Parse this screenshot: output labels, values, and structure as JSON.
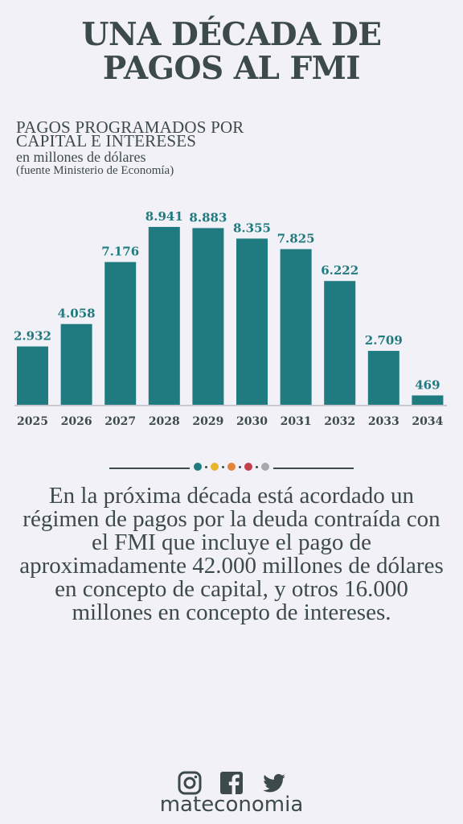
{
  "header": {
    "title_line1": "UNA DÉCADA DE",
    "title_line2": "PAGOS AL FMI"
  },
  "subtitle": {
    "line1": "PAGOS PROGRAMADOS POR",
    "line2": "CAPITAL E INTERESES",
    "line3": "en millones de dólares",
    "line4": "(fuente Ministerio de Economía)"
  },
  "chart_data": {
    "type": "bar",
    "categories": [
      "2025",
      "2026",
      "2027",
      "2028",
      "2029",
      "2030",
      "2031",
      "2032",
      "2033",
      "2034"
    ],
    "values": [
      2932,
      4058,
      7176,
      8941,
      8883,
      8355,
      7825,
      6222,
      2709,
      469
    ],
    "value_labels": [
      "2.932",
      "4.058",
      "7.176",
      "8.941",
      "8.883",
      "8.355",
      "7.825",
      "6.222",
      "2.709",
      "469"
    ],
    "title": "PAGOS PROGRAMADOS POR CAPITAL E INTERESES",
    "xlabel": "",
    "ylabel": "",
    "ylim": [
      0,
      9000
    ],
    "grid": false,
    "legend": "none",
    "bar_color": "#1f7b7f"
  },
  "divider": {
    "dot_colors": [
      "#1f7b7f",
      "#e7b62d",
      "#e4833a",
      "#c23f4b",
      "#a9a9ac"
    ]
  },
  "body": {
    "text": "En la próxima década está acordado un régimen de pagos por la deuda contraída con el FMI que incluye el pago de aproximadamente 42.000 millones de dólares en concepto de capital, y otros 16.000 millones en concepto de intereses."
  },
  "footer": {
    "icons": [
      "instagram-icon",
      "facebook-icon",
      "twitter-icon"
    ],
    "brand": "mateconomia"
  },
  "colors": {
    "background": "#f2f1f7",
    "text": "#3d4a4b",
    "accent": "#1f7b7f"
  }
}
